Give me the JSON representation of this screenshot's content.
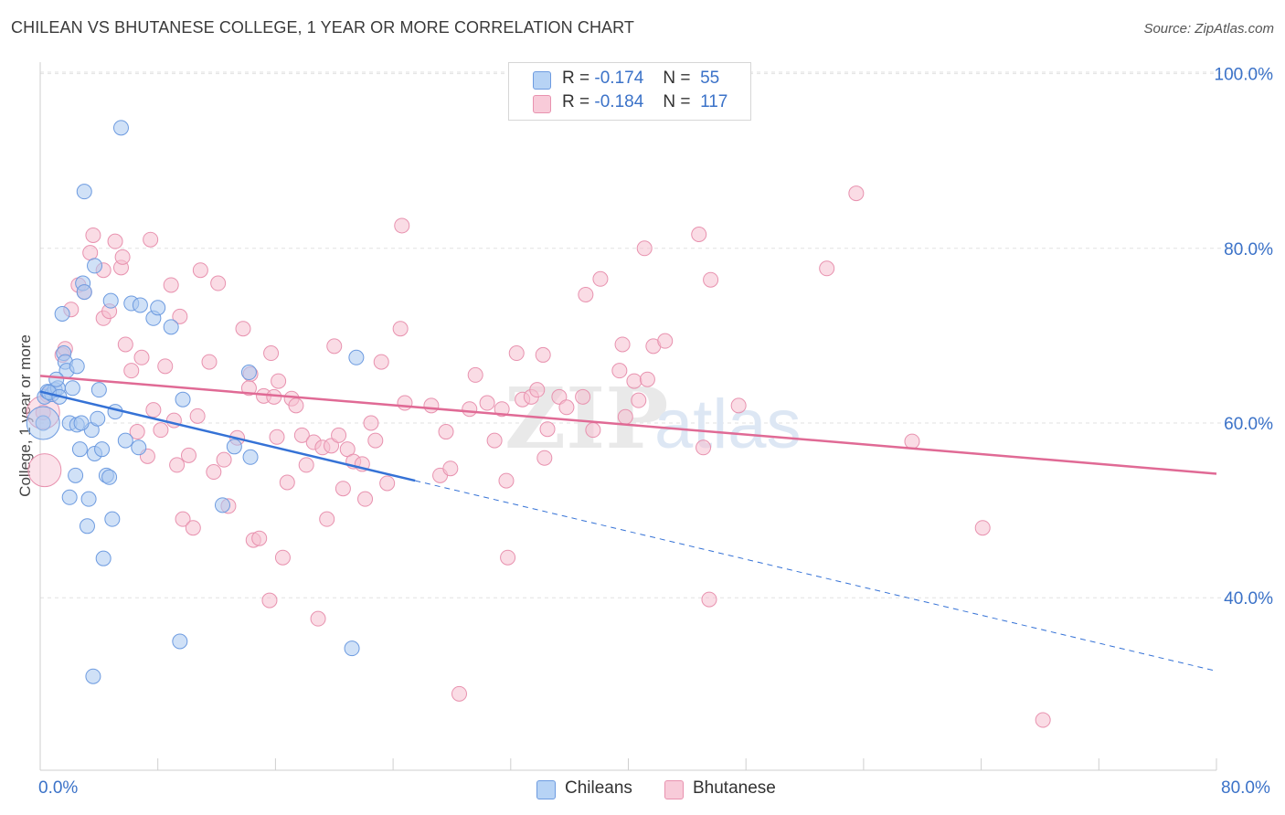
{
  "title": "CHILEAN VS BHUTANESE COLLEGE, 1 YEAR OR MORE CORRELATION CHART",
  "source": "Source: ZipAtlas.com",
  "legend": {
    "rows": [
      {
        "r_label": "R =",
        "r_value": "-0.174",
        "n_label": "N =",
        "n_value": "55"
      },
      {
        "r_label": "R =",
        "r_value": "-0.184",
        "n_label": "N =",
        "n_value": "117"
      }
    ]
  },
  "bottom_legend": [
    "Chileans",
    "Bhutanese"
  ],
  "colors": {
    "chileans_fill": "#a9c8f0",
    "chileans_stroke": "#6d9be0",
    "chileans_line": "#3572d6",
    "bhutanese_fill": "#f6bfd0",
    "bhutanese_stroke": "#e892af",
    "bhutanese_line": "#e06a95",
    "axis_text": "#3b72c8",
    "grid": "#e2e2e2"
  },
  "chart_data": {
    "type": "scatter",
    "title": "CHILEAN VS BHUTANESE COLLEGE, 1 YEAR OR MORE CORRELATION CHART",
    "xlabel": "",
    "ylabel": "College, 1 year or more",
    "xlim": [
      0,
      80
    ],
    "ylim": [
      20,
      102
    ],
    "x_ticks": [
      "0.0%",
      "80.0%"
    ],
    "y_ticks": [
      {
        "value": 100,
        "label": "100.0%"
      },
      {
        "value": 80,
        "label": "80.0%"
      },
      {
        "value": 60,
        "label": "60.0%"
      },
      {
        "value": 40,
        "label": "40.0%"
      }
    ],
    "grid": true,
    "legend_position": "top-center",
    "series": [
      {
        "name": "Chileans",
        "r": -0.174,
        "n": 55,
        "trend": {
          "x0": 0,
          "y0": 63.6,
          "x1": 25.5,
          "y1": 53.4,
          "dash_to_x": 80,
          "dash_to_y": 31.6
        },
        "points": [
          [
            0.3,
            63.0
          ],
          [
            0.5,
            63.6
          ],
          [
            0.8,
            63.3
          ],
          [
            1.0,
            63.8
          ],
          [
            1.2,
            64.0
          ],
          [
            1.5,
            72.5
          ],
          [
            1.6,
            68.0
          ],
          [
            1.7,
            67.0
          ],
          [
            1.8,
            66.0
          ],
          [
            2.0,
            60.0
          ],
          [
            2.0,
            51.5
          ],
          [
            2.2,
            64.0
          ],
          [
            2.4,
            54.0
          ],
          [
            2.5,
            59.8
          ],
          [
            2.5,
            66.5
          ],
          [
            2.7,
            57.0
          ],
          [
            2.9,
            76.0
          ],
          [
            3.0,
            75.0
          ],
          [
            3.0,
            86.5
          ],
          [
            3.2,
            48.2
          ],
          [
            3.3,
            51.3
          ],
          [
            3.5,
            59.2
          ],
          [
            3.7,
            56.5
          ],
          [
            3.7,
            78.0
          ],
          [
            4.0,
            63.8
          ],
          [
            4.2,
            57.0
          ],
          [
            4.3,
            44.5
          ],
          [
            4.5,
            54.0
          ],
          [
            4.7,
            53.8
          ],
          [
            4.8,
            74.0
          ],
          [
            4.9,
            49.0
          ],
          [
            5.1,
            61.3
          ],
          [
            5.5,
            93.8
          ],
          [
            5.8,
            58.0
          ],
          [
            6.2,
            73.7
          ],
          [
            6.7,
            57.2
          ],
          [
            6.8,
            73.5
          ],
          [
            7.7,
            72.0
          ],
          [
            8.0,
            73.2
          ],
          [
            8.9,
            71.0
          ],
          [
            9.5,
            35.0
          ],
          [
            9.7,
            62.7
          ],
          [
            3.6,
            31.0
          ],
          [
            12.4,
            50.6
          ],
          [
            13.2,
            57.3
          ],
          [
            14.2,
            65.8
          ],
          [
            14.3,
            56.1
          ],
          [
            21.5,
            67.5
          ],
          [
            21.2,
            34.2
          ],
          [
            0.2,
            60.0
          ],
          [
            0.6,
            63.5
          ],
          [
            1.3,
            63.0
          ],
          [
            2.8,
            60.0
          ],
          [
            3.9,
            60.5
          ],
          [
            1.1,
            65.0
          ]
        ],
        "big_points": [
          [
            0.2,
            60.0
          ]
        ]
      },
      {
        "name": "Bhutanese",
        "r": -0.184,
        "n": 117,
        "trend": {
          "x0": 0,
          "y0": 65.4,
          "x1": 80,
          "y1": 54.2
        },
        "points": [
          [
            0.2,
            61.2
          ],
          [
            0.5,
            63.2
          ],
          [
            1.5,
            67.8
          ],
          [
            1.7,
            68.5
          ],
          [
            2.1,
            73.0
          ],
          [
            2.6,
            75.8
          ],
          [
            3.0,
            75.0
          ],
          [
            3.4,
            79.5
          ],
          [
            3.6,
            81.5
          ],
          [
            4.3,
            77.5
          ],
          [
            4.3,
            72.0
          ],
          [
            4.7,
            72.8
          ],
          [
            5.1,
            80.8
          ],
          [
            5.5,
            77.8
          ],
          [
            5.6,
            79.0
          ],
          [
            5.8,
            69.0
          ],
          [
            6.2,
            66.0
          ],
          [
            6.6,
            59.0
          ],
          [
            6.9,
            67.5
          ],
          [
            7.3,
            56.2
          ],
          [
            7.5,
            81.0
          ],
          [
            7.7,
            61.5
          ],
          [
            8.2,
            59.2
          ],
          [
            8.5,
            66.5
          ],
          [
            8.9,
            75.8
          ],
          [
            9.3,
            55.2
          ],
          [
            9.5,
            72.2
          ],
          [
            9.7,
            49.0
          ],
          [
            10.1,
            56.3
          ],
          [
            10.4,
            48.0
          ],
          [
            10.7,
            60.8
          ],
          [
            10.9,
            77.5
          ],
          [
            11.5,
            67.0
          ],
          [
            11.8,
            54.4
          ],
          [
            12.1,
            76.0
          ],
          [
            12.5,
            55.8
          ],
          [
            12.8,
            50.5
          ],
          [
            13.4,
            58.3
          ],
          [
            13.8,
            70.8
          ],
          [
            14.3,
            65.6
          ],
          [
            14.5,
            46.6
          ],
          [
            14.9,
            46.8
          ],
          [
            15.2,
            63.1
          ],
          [
            15.6,
            39.7
          ],
          [
            15.7,
            68.0
          ],
          [
            15.9,
            63.0
          ],
          [
            16.1,
            58.4
          ],
          [
            16.2,
            64.8
          ],
          [
            16.5,
            44.6
          ],
          [
            16.8,
            53.2
          ],
          [
            17.1,
            62.8
          ],
          [
            17.4,
            62.0
          ],
          [
            17.8,
            58.6
          ],
          [
            18.1,
            55.2
          ],
          [
            18.6,
            57.8
          ],
          [
            18.9,
            37.6
          ],
          [
            19.2,
            57.2
          ],
          [
            19.5,
            49.0
          ],
          [
            19.8,
            57.4
          ],
          [
            20.0,
            68.8
          ],
          [
            20.3,
            58.6
          ],
          [
            20.6,
            52.5
          ],
          [
            20.9,
            57.0
          ],
          [
            21.3,
            55.6
          ],
          [
            21.9,
            55.3
          ],
          [
            22.1,
            51.3
          ],
          [
            22.5,
            60.0
          ],
          [
            22.8,
            58.0
          ],
          [
            23.2,
            67.0
          ],
          [
            23.6,
            53.1
          ],
          [
            24.6,
            82.6
          ],
          [
            24.5,
            70.8
          ],
          [
            26.6,
            62.0
          ],
          [
            27.2,
            54.0
          ],
          [
            27.6,
            59.0
          ],
          [
            27.9,
            54.8
          ],
          [
            28.5,
            29.0
          ],
          [
            29.2,
            61.6
          ],
          [
            29.6,
            65.5
          ],
          [
            30.4,
            62.3
          ],
          [
            30.9,
            58.0
          ],
          [
            31.4,
            61.6
          ],
          [
            31.7,
            53.4
          ],
          [
            31.8,
            44.6
          ],
          [
            32.4,
            68.0
          ],
          [
            32.8,
            62.7
          ],
          [
            33.4,
            63.0
          ],
          [
            33.8,
            63.8
          ],
          [
            34.2,
            67.8
          ],
          [
            34.5,
            59.3
          ],
          [
            34.3,
            56.0
          ],
          [
            35.3,
            63.0
          ],
          [
            35.8,
            61.8
          ],
          [
            36.9,
            63.0
          ],
          [
            37.1,
            74.7
          ],
          [
            38.1,
            76.5
          ],
          [
            39.4,
            66.0
          ],
          [
            39.6,
            69.0
          ],
          [
            39.8,
            60.7
          ],
          [
            40.4,
            64.8
          ],
          [
            40.7,
            62.6
          ],
          [
            41.1,
            80.0
          ],
          [
            41.3,
            65.0
          ],
          [
            41.7,
            68.8
          ],
          [
            42.5,
            69.4
          ],
          [
            44.8,
            81.6
          ],
          [
            45.1,
            57.2
          ],
          [
            45.5,
            39.8
          ],
          [
            45.6,
            76.4
          ],
          [
            47.5,
            62.0
          ],
          [
            53.5,
            77.7
          ],
          [
            55.5,
            86.3
          ],
          [
            59.3,
            57.9
          ],
          [
            64.1,
            48.0
          ],
          [
            68.2,
            26.0
          ],
          [
            14.2,
            64.0
          ],
          [
            9.1,
            60.3
          ],
          [
            24.8,
            62.3
          ],
          [
            37.6,
            59.2
          ]
        ],
        "big_points": [
          [
            0.3,
            54.6
          ],
          [
            0.2,
            61.2
          ]
        ]
      }
    ]
  }
}
